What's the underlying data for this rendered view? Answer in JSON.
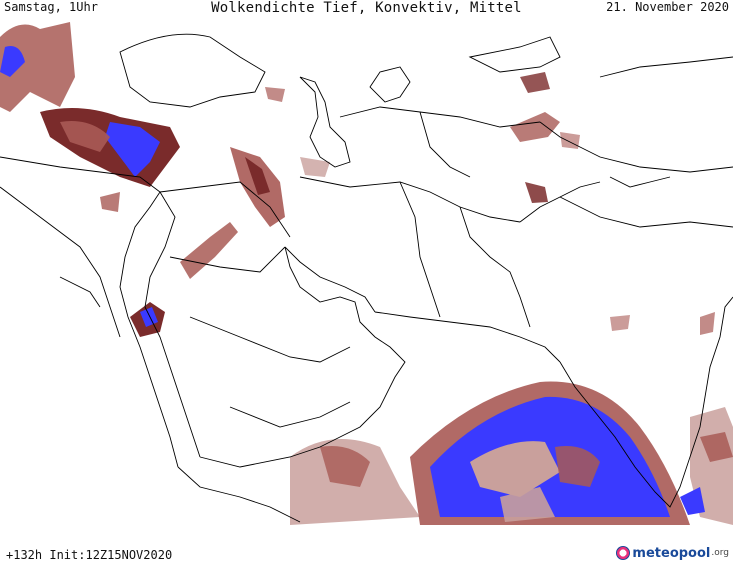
{
  "header": {
    "left": "Samstag, 1Uhr",
    "title": "Wolkendichte  Tief, Konvektiv, Mittel",
    "right": "21. November 2020"
  },
  "footer": {
    "run": "+132h Init:12Z15NOV2020",
    "brand": "meteopool",
    "brand_suffix": ".org"
  },
  "colors": {
    "cloud_light": "#c9a09c",
    "cloud_medium": "#a85a55",
    "cloud_dense": "#7a2b2b",
    "cloud_max": "#3a3aff",
    "coastline": "#000000",
    "border": "#000000",
    "brand_pink": "#e8307a",
    "brand_blue": "#1a4a9a"
  },
  "icons": {
    "logo": "meteopool-ring-icon"
  }
}
